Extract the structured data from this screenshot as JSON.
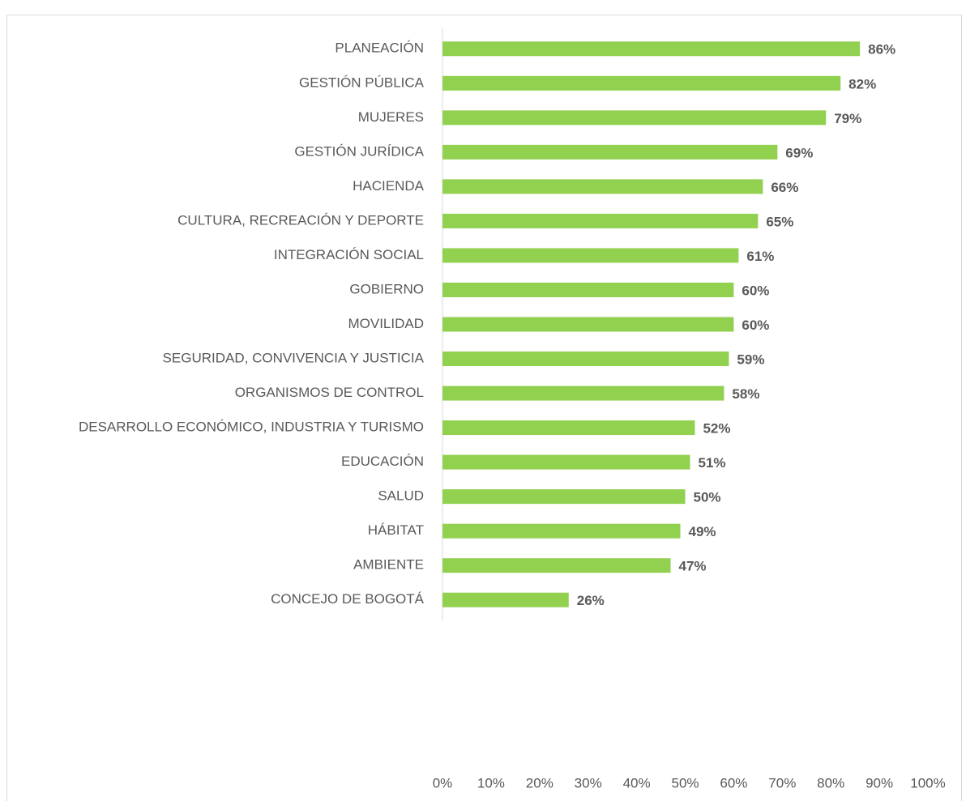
{
  "chart_data": {
    "type": "bar",
    "orientation": "horizontal",
    "categories": [
      "PLANEACIÓN",
      "GESTIÓN PÚBLICA",
      "MUJERES",
      "GESTIÓN JURÍDICA",
      "HACIENDA",
      "CULTURA, RECREACIÓN Y DEPORTE",
      "INTEGRACIÓN SOCIAL",
      "GOBIERNO",
      "MOVILIDAD",
      "SEGURIDAD, CONVIVENCIA Y JUSTICIA",
      "ORGANISMOS DE CONTROL",
      "DESARROLLO ECONÓMICO, INDUSTRIA Y TURISMO",
      "EDUCACIÓN",
      "SALUD",
      "HÁBITAT",
      "AMBIENTE",
      "CONCEJO DE BOGOTÁ"
    ],
    "values": [
      86,
      82,
      79,
      69,
      66,
      65,
      61,
      60,
      60,
      59,
      58,
      52,
      51,
      50,
      49,
      47,
      26
    ],
    "value_labels": [
      "86%",
      "82%",
      "79%",
      "69%",
      "66%",
      "65%",
      "61%",
      "60%",
      "60%",
      "59%",
      "58%",
      "52%",
      "51%",
      "50%",
      "49%",
      "47%",
      "26%"
    ],
    "color": "#92d050",
    "xlim": [
      0,
      100
    ],
    "xticks": [
      {
        "value": 0,
        "label": "0%"
      },
      {
        "value": 10,
        "label": "10%"
      },
      {
        "value": 20,
        "label": "20%"
      },
      {
        "value": 30,
        "label": "30%"
      },
      {
        "value": 40,
        "label": "40%"
      },
      {
        "value": 50,
        "label": "50%"
      },
      {
        "value": 60,
        "label": "60%"
      },
      {
        "value": 70,
        "label": "70%"
      },
      {
        "value": 80,
        "label": "80%"
      },
      {
        "value": 90,
        "label": "90%"
      },
      {
        "value": 100,
        "label": "100%"
      }
    ],
    "grid": false
  }
}
